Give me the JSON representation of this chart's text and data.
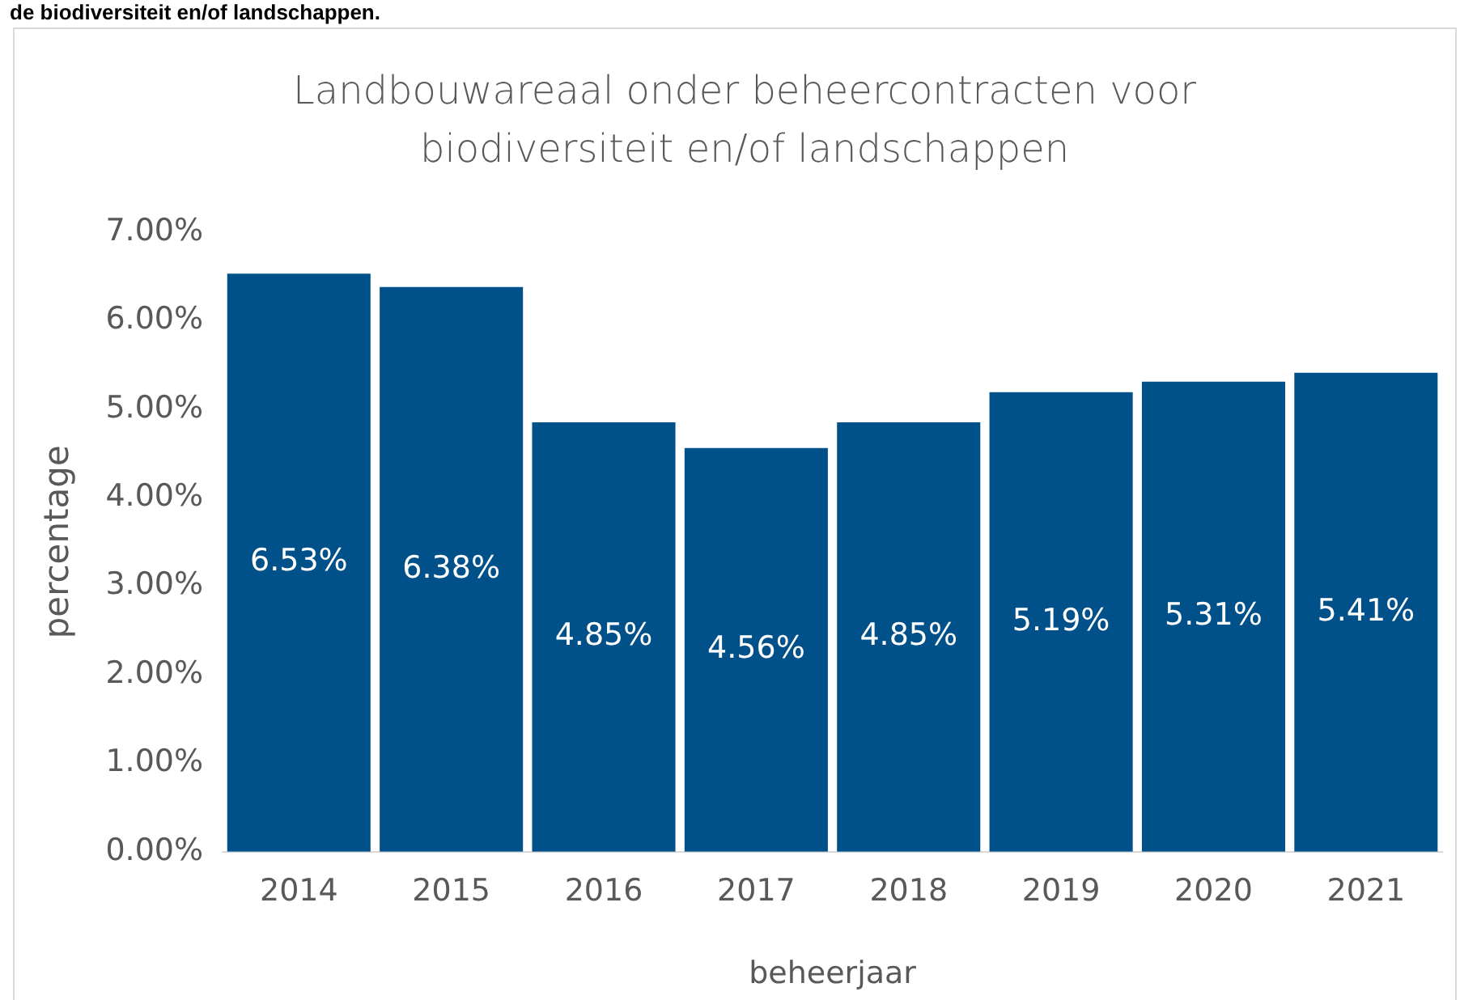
{
  "chart_data": {
    "type": "bar",
    "title": "Landbouwareaal onder beheercontracten voor biodiversiteit en/of landschappen",
    "xlabel": "beheerjaar",
    "ylabel": "percentage",
    "annotations": [
      "de biodiversiteit en/of landschappen."
    ],
    "categories": [
      "2014",
      "2015",
      "2016",
      "2017",
      "2018",
      "2019",
      "2020",
      "2021"
    ],
    "values": [
      6.53,
      6.38,
      4.85,
      4.56,
      4.85,
      5.19,
      5.31,
      5.41
    ],
    "value_labels": [
      "6.53%",
      "6.38%",
      "4.85%",
      "4.56%",
      "4.85%",
      "5.19%",
      "5.31%",
      "5.41%"
    ],
    "color": "#00518a",
    "ylim": [
      0,
      7
    ],
    "yticks": [
      {
        "value": 0,
        "label": "0.00%"
      },
      {
        "value": 1,
        "label": "1.00%"
      },
      {
        "value": 2,
        "label": "2.00%"
      },
      {
        "value": 3,
        "label": "3.00%"
      },
      {
        "value": 4,
        "label": "4.00%"
      },
      {
        "value": 5,
        "label": "5.00%"
      },
      {
        "value": 6,
        "label": "6.00%"
      },
      {
        "value": 7,
        "label": "7.00%"
      }
    ],
    "grid": false,
    "legend": false
  }
}
